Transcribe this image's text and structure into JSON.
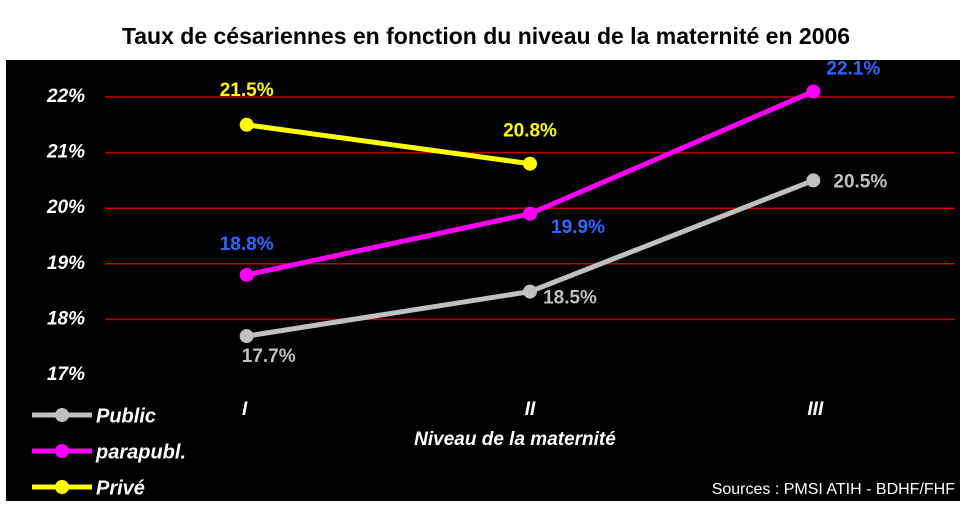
{
  "chart_data": {
    "type": "line",
    "title": "Taux de césariennes en fonction du niveau de la maternité en 2006",
    "x_label": "Niveau de la maternité",
    "source": "Sources : PMSI ATIH - BDHF/FHF",
    "categories": [
      "I",
      "II",
      "III"
    ],
    "series": [
      {
        "name": "Public",
        "color": "#c0c0c0",
        "label_color": "#c0c0c0",
        "values": [
          17.7,
          18.5,
          20.5
        ],
        "value_labels": [
          "17.7%",
          "18.5%",
          "20.5%"
        ]
      },
      {
        "name": "parapubl.",
        "color": "#ff00ff",
        "label_color": "#3366ff",
        "values": [
          18.8,
          19.9,
          22.1
        ],
        "value_labels": [
          "18.8%",
          "19.9%",
          "22.1%"
        ]
      },
      {
        "name": "Privé",
        "color": "#ffff00",
        "label_color": "#ffff00",
        "values": [
          21.5,
          20.8,
          null
        ],
        "value_labels": [
          "21.5%",
          "20.8%",
          null
        ]
      }
    ],
    "ylim": [
      17,
      22
    ],
    "yticks": [
      {
        "value": 17,
        "label": "17%"
      },
      {
        "value": 18,
        "label": "18%"
      },
      {
        "value": 19,
        "label": "19%"
      },
      {
        "value": 20,
        "label": "20%"
      },
      {
        "value": 21,
        "label": "21%"
      },
      {
        "value": 22,
        "label": "22%"
      }
    ],
    "grid": true,
    "grid_color": "#c00000",
    "legend": "bottom-left"
  }
}
